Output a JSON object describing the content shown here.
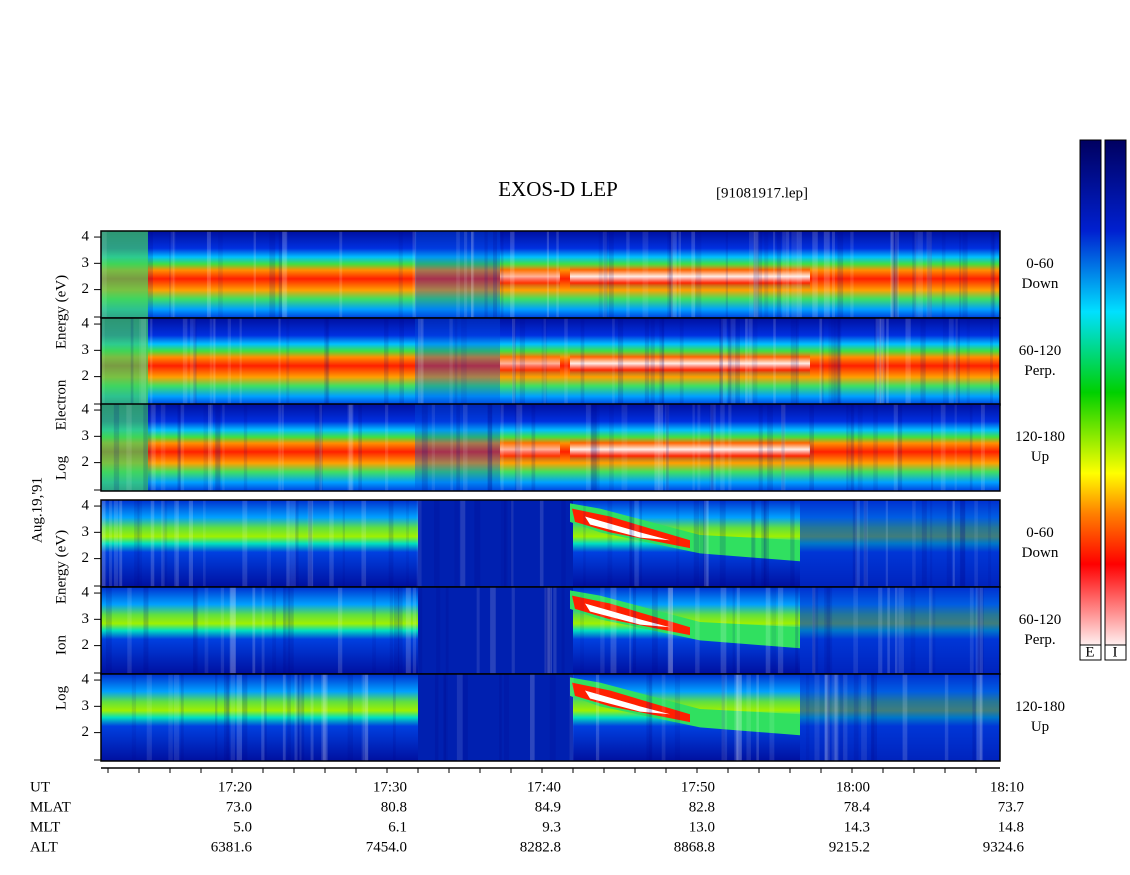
{
  "title": "EXOS-D LEP",
  "file": "[91081917.lep]",
  "date": "Aug.19,'91",
  "electron_axis_label": [
    "Log",
    "Electron",
    "Energy (eV)"
  ],
  "ion_axis_label": [
    "Log",
    "Ion",
    "Energy (eV)"
  ],
  "ylim": [
    0.92,
    4.23
  ],
  "yticks": [
    2,
    3,
    4
  ],
  "panels": [
    {
      "species": "electron",
      "pitch": "0-60",
      "direction": "Down"
    },
    {
      "species": "electron",
      "pitch": "60-120",
      "direction": "Perp."
    },
    {
      "species": "electron",
      "pitch": "120-180",
      "direction": "Up"
    },
    {
      "species": "ion",
      "pitch": "0-60",
      "direction": "Down"
    },
    {
      "species": "ion",
      "pitch": "60-120",
      "direction": "Perp."
    },
    {
      "species": "ion",
      "pitch": "120-180",
      "direction": "Up"
    }
  ],
  "colorbar_labels": [
    "E",
    "I"
  ],
  "time_axis": [
    {
      "name": "UT",
      "values": [
        "17:20",
        "17:30",
        "17:40",
        "17:50",
        "18:00",
        "18:10"
      ]
    },
    {
      "name": "MLAT",
      "values": [
        "73.0",
        "80.8",
        "84.9",
        "82.8",
        "78.4",
        "73.7"
      ]
    },
    {
      "name": "MLT",
      "values": [
        "5.0",
        "6.1",
        "9.3",
        "13.0",
        "14.3",
        "14.8"
      ]
    },
    {
      "name": "ALT",
      "values": [
        "6381.6",
        "7454.0",
        "8282.8",
        "8868.8",
        "9215.2",
        "9324.6"
      ]
    }
  ]
}
